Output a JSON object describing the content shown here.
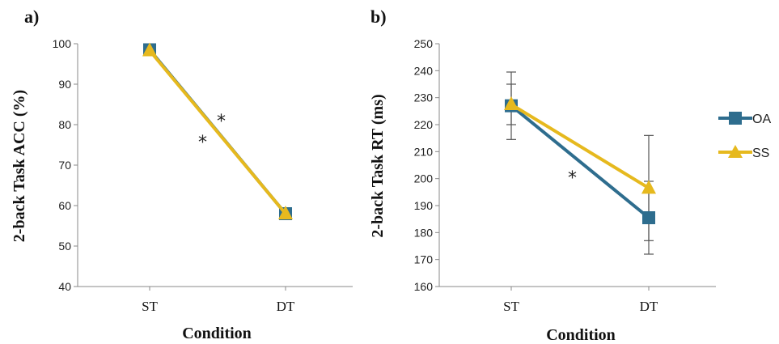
{
  "chart_data": [
    {
      "panel_label": "a)",
      "type": "line",
      "categories": [
        "ST",
        "DT"
      ],
      "series": [
        {
          "name": "OA",
          "values": [
            98.5,
            58
          ],
          "color": "#2e6d8e",
          "marker": "square"
        },
        {
          "name": "SS",
          "values": [
            98.3,
            58
          ],
          "color": "#e6b91e",
          "marker": "triangle"
        }
      ],
      "xlabel": "Condition",
      "ylabel": "2-back Task ACC (%)",
      "ylim": [
        40,
        100
      ],
      "yticks": [
        40,
        50,
        60,
        70,
        80,
        90,
        100
      ],
      "annotations": [
        "*",
        "*"
      ],
      "grid": false
    },
    {
      "panel_label": "b)",
      "type": "line",
      "categories": [
        "ST",
        "DT"
      ],
      "series": [
        {
          "name": "OA",
          "values": [
            227,
            185.5
          ],
          "error": [
            12.5,
            13.5
          ],
          "color": "#2e6d8e",
          "marker": "square"
        },
        {
          "name": "SS",
          "values": [
            227.5,
            196.5
          ],
          "error": [
            7.5,
            19.5
          ],
          "color": "#e6b91e",
          "marker": "triangle"
        }
      ],
      "xlabel": "Condition",
      "ylabel": "2-back Task RT (ms)",
      "ylim": [
        160,
        250
      ],
      "yticks": [
        160,
        170,
        180,
        190,
        200,
        210,
        220,
        230,
        240,
        250
      ],
      "annotations": [
        "*"
      ],
      "legend": {
        "placement": "right",
        "entries": [
          "OA",
          "SS"
        ]
      },
      "grid": false
    }
  ]
}
